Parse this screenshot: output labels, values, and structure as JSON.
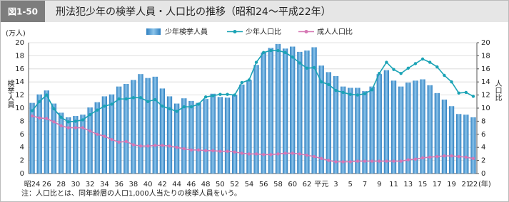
{
  "chart_data": {
    "type": "bar",
    "figure_label": "図1-50",
    "title": "刑法犯少年の検挙人員・人口比の推移（昭和24～平成22年）",
    "y_unit": "(万人)",
    "y_label": "検挙人員",
    "y2_label": "人口比",
    "x_unit": "(年)",
    "note": "注：人口比とは、同年齢層の人口1,000人当たりの検挙人員をいう。",
    "categories": [
      "昭24",
      null,
      "26",
      null,
      "28",
      null,
      "30",
      null,
      "32",
      null,
      "34",
      null,
      "36",
      null,
      "38",
      null,
      "40",
      null,
      "42",
      null,
      "44",
      null,
      "46",
      null,
      "48",
      null,
      "50",
      null,
      "52",
      null,
      "54",
      null,
      "56",
      null,
      "58",
      null,
      "60",
      null,
      "62",
      null,
      "平元",
      null,
      "3",
      null,
      "5",
      null,
      "7",
      null,
      "9",
      null,
      "11",
      null,
      "13",
      null,
      "15",
      null,
      "17",
      null,
      "19",
      null,
      "21",
      "22"
    ],
    "ylim": [
      0,
      20
    ],
    "yticks": [
      0,
      2,
      4,
      6,
      8,
      10,
      12,
      14,
      16,
      18,
      20
    ],
    "y2lim": [
      0,
      20
    ],
    "y2ticks": [
      0,
      2,
      4,
      6,
      8,
      10,
      12,
      14,
      16,
      18,
      20
    ],
    "grid": true,
    "series": [
      {
        "name": "少年検挙人員",
        "type": "bar",
        "color": "#2e7fc0",
        "values": [
          10.8,
          12.1,
          12.7,
          10.7,
          9.3,
          8.6,
          8.8,
          9.0,
          10.1,
          10.9,
          11.8,
          12.1,
          13.3,
          13.7,
          14.3,
          15.2,
          14.6,
          14.8,
          13.0,
          11.8,
          10.7,
          11.5,
          11.1,
          10.8,
          11.4,
          12.2,
          11.7,
          11.6,
          12.0,
          13.6,
          14.3,
          16.6,
          18.5,
          19.2,
          19.8,
          19.1,
          19.4,
          18.6,
          18.8,
          19.3,
          16.5,
          15.5,
          14.9,
          13.3,
          13.1,
          13.1,
          12.6,
          13.3,
          15.2,
          15.8,
          14.2,
          13.3,
          13.9,
          14.2,
          14.4,
          13.5,
          12.3,
          11.3,
          10.3,
          9.1,
          9.0,
          8.6
        ]
      },
      {
        "name": "少年人口比",
        "type": "line",
        "axis": "y2",
        "color": "#1aa3b5",
        "values": [
          9.6,
          11.0,
          12.0,
          9.9,
          8.6,
          7.9,
          8.0,
          8.2,
          9.0,
          9.7,
          10.3,
          10.6,
          11.4,
          11.4,
          11.6,
          11.6,
          11.0,
          11.3,
          10.3,
          9.9,
          9.5,
          10.2,
          10.2,
          10.6,
          11.7,
          11.9,
          12.1,
          12.1,
          12.0,
          13.9,
          14.3,
          17.0,
          18.5,
          18.8,
          18.8,
          18.5,
          17.8,
          16.9,
          16.1,
          16.2,
          14.0,
          13.6,
          12.7,
          12.4,
          12.1,
          12.0,
          12.2,
          12.8,
          15.3,
          17.0,
          15.9,
          15.3,
          16.1,
          16.8,
          17.5,
          17.0,
          16.3,
          15.0,
          14.0,
          12.3,
          12.4,
          11.8
        ]
      },
      {
        "name": "成人人口比",
        "type": "line",
        "axis": "y2",
        "color": "#d678b4",
        "values": [
          8.8,
          8.5,
          8.4,
          7.9,
          7.3,
          7.0,
          7.0,
          7.0,
          6.5,
          6.0,
          5.7,
          5.2,
          4.8,
          4.9,
          4.4,
          4.2,
          4.2,
          4.3,
          4.3,
          4.2,
          4.0,
          3.8,
          3.6,
          3.6,
          3.5,
          3.5,
          3.4,
          3.4,
          3.3,
          3.1,
          3.0,
          3.0,
          2.9,
          2.9,
          3.0,
          3.1,
          3.1,
          3.0,
          2.8,
          2.6,
          2.3,
          2.0,
          1.8,
          1.8,
          1.8,
          1.9,
          1.9,
          1.9,
          1.9,
          1.9,
          1.9,
          1.9,
          2.1,
          2.2,
          2.4,
          2.5,
          2.6,
          2.7,
          2.7,
          2.6,
          2.5,
          2.3
        ]
      }
    ]
  }
}
